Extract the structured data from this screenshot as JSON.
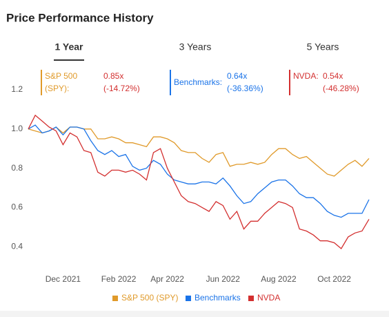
{
  "chart_data": {
    "type": "line",
    "title": "Price Performance History",
    "tabs": [
      "1 Year",
      "3 Years",
      "5 Years"
    ],
    "active_tab": 0,
    "summary": [
      {
        "label": "S&P 500 (SPY):",
        "ratio": "0.85x",
        "change": "(-14.72%)"
      },
      {
        "label": "Benchmarks:",
        "ratio": "0.64x",
        "change": "(-36.36%)"
      },
      {
        "label": "NVDA:",
        "ratio": "0.54x",
        "change": "(-46.28%)"
      }
    ],
    "categories": [
      null,
      null,
      null,
      null,
      null,
      "Dec 2021",
      null,
      null,
      null,
      null,
      null,
      null,
      null,
      "Feb 2022",
      null,
      null,
      null,
      null,
      null,
      null,
      "Apr 2022",
      null,
      null,
      null,
      null,
      null,
      null,
      null,
      "Jun 2022",
      null,
      null,
      null,
      null,
      null,
      null,
      null,
      "Aug 2022",
      null,
      null,
      null,
      null,
      null,
      null,
      null,
      "Oct 2022",
      null,
      null,
      null,
      null,
      null
    ],
    "series": [
      {
        "name": "S&P 500 (SPY)",
        "color": "#e09a2a",
        "values": [
          1.0,
          0.99,
          0.98,
          0.99,
          1.01,
          0.98,
          1.01,
          1.01,
          1.0,
          1.0,
          0.95,
          0.95,
          0.96,
          0.95,
          0.93,
          0.93,
          0.92,
          0.91,
          0.96,
          0.96,
          0.95,
          0.93,
          0.89,
          0.88,
          0.88,
          0.85,
          0.83,
          0.87,
          0.88,
          0.81,
          0.82,
          0.82,
          0.83,
          0.82,
          0.83,
          0.87,
          0.9,
          0.9,
          0.87,
          0.85,
          0.86,
          0.83,
          0.8,
          0.77,
          0.76,
          0.79,
          0.82,
          0.84,
          0.81,
          0.85
        ]
      },
      {
        "name": "Benchmarks",
        "color": "#1a73e8",
        "values": [
          1.0,
          1.02,
          0.98,
          0.99,
          1.01,
          0.97,
          1.01,
          1.01,
          1.0,
          0.94,
          0.89,
          0.87,
          0.89,
          0.86,
          0.87,
          0.81,
          0.79,
          0.8,
          0.84,
          0.82,
          0.77,
          0.74,
          0.73,
          0.72,
          0.72,
          0.73,
          0.73,
          0.72,
          0.75,
          0.71,
          0.66,
          0.62,
          0.63,
          0.67,
          0.7,
          0.73,
          0.74,
          0.74,
          0.71,
          0.67,
          0.65,
          0.65,
          0.62,
          0.58,
          0.56,
          0.55,
          0.57,
          0.57,
          0.57,
          0.64
        ]
      },
      {
        "name": "NVDA",
        "color": "#d32f2f",
        "values": [
          1.0,
          1.07,
          1.04,
          1.01,
          0.99,
          0.92,
          0.98,
          0.96,
          0.89,
          0.88,
          0.78,
          0.76,
          0.79,
          0.79,
          0.78,
          0.79,
          0.77,
          0.74,
          0.88,
          0.9,
          0.8,
          0.73,
          0.66,
          0.63,
          0.62,
          0.6,
          0.58,
          0.63,
          0.61,
          0.54,
          0.58,
          0.49,
          0.53,
          0.53,
          0.57,
          0.6,
          0.63,
          0.62,
          0.6,
          0.49,
          0.48,
          0.46,
          0.43,
          0.43,
          0.42,
          0.39,
          0.45,
          0.47,
          0.48,
          0.54
        ]
      }
    ],
    "ylim": [
      0.3,
      1.3
    ],
    "yticks": [
      0.4,
      0.6,
      0.8,
      {
        "value": 1,
        "label": "1.0"
      },
      1.2
    ],
    "grid": false
  }
}
